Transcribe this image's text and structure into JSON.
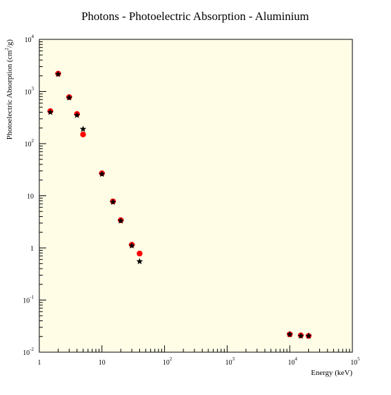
{
  "chart_data": {
    "type": "scatter",
    "title": "Photons - Photoelectric Absorption - Aluminium",
    "xlabel": "Energy (keV)",
    "ylabel": "Photoelectric Absorption (cm2/g)",
    "x_scale": "log",
    "y_scale": "log",
    "xlim": [
      1,
      100000
    ],
    "ylim": [
      0.01,
      10000
    ],
    "grid": false,
    "legend": "none",
    "plot_background": "#fffde6",
    "x_ticks": [
      {
        "value": 1,
        "base": "1",
        "exp": ""
      },
      {
        "value": 10,
        "base": "10",
        "exp": ""
      },
      {
        "value": 100,
        "base": "10",
        "exp": "2"
      },
      {
        "value": 1000,
        "base": "10",
        "exp": "3"
      },
      {
        "value": 10000,
        "base": "10",
        "exp": "4"
      },
      {
        "value": 100000,
        "base": "10",
        "exp": "5"
      }
    ],
    "y_ticks": [
      {
        "value": 0.01,
        "base": "10",
        "exp": "-2"
      },
      {
        "value": 0.1,
        "base": "10",
        "exp": "-1"
      },
      {
        "value": 1,
        "base": "1",
        "exp": ""
      },
      {
        "value": 10,
        "base": "10",
        "exp": ""
      },
      {
        "value": 100,
        "base": "10",
        "exp": "2"
      },
      {
        "value": 1000,
        "base": "10",
        "exp": "3"
      },
      {
        "value": 10000,
        "base": "10",
        "exp": "4"
      }
    ],
    "series": [
      {
        "marker": "circle",
        "color": "#ff0000",
        "points": [
          [
            1.5,
            420
          ],
          [
            2,
            2200
          ],
          [
            3,
            780
          ],
          [
            4,
            370
          ],
          [
            5,
            150
          ],
          [
            10,
            27
          ],
          [
            15,
            7.8
          ],
          [
            20,
            3.4
          ],
          [
            30,
            1.15
          ],
          [
            40,
            0.78
          ],
          [
            10000,
            0.022
          ],
          [
            15000,
            0.021
          ],
          [
            20000,
            0.0205
          ]
        ]
      },
      {
        "marker": "star",
        "color": "#000000",
        "points": [
          [
            1.5,
            400
          ],
          [
            2,
            2150
          ],
          [
            3,
            760
          ],
          [
            4,
            350
          ],
          [
            5,
            190
          ],
          [
            10,
            26
          ],
          [
            15,
            7.6
          ],
          [
            20,
            3.3
          ],
          [
            30,
            1.1
          ],
          [
            40,
            0.55
          ],
          [
            10000,
            0.022
          ],
          [
            15000,
            0.0205
          ],
          [
            20000,
            0.0205
          ]
        ]
      }
    ]
  }
}
